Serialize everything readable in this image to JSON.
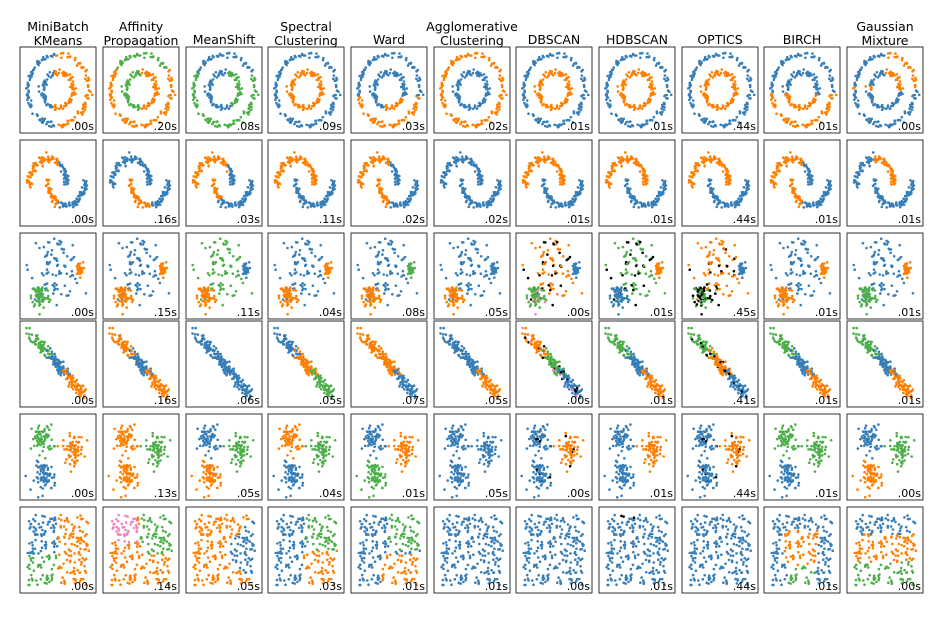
{
  "chart_data": {
    "type": "scatter",
    "layout": "grid",
    "rows": 6,
    "columns": [
      {
        "title": [
          "MiniBatch",
          "KMeans"
        ]
      },
      {
        "title": [
          "Affinity",
          "Propagation"
        ]
      },
      {
        "title": [
          "MeanShift"
        ]
      },
      {
        "title": [
          "Spectral",
          "Clustering"
        ]
      },
      {
        "title": [
          "Ward"
        ]
      },
      {
        "title": [
          "Agglomerative",
          "Clustering"
        ]
      },
      {
        "title": [
          "DBSCAN"
        ]
      },
      {
        "title": [
          "HDBSCAN"
        ]
      },
      {
        "title": [
          "OPTICS"
        ]
      },
      {
        "title": [
          "BIRCH"
        ]
      },
      {
        "title": [
          "Gaussian",
          "Mixture"
        ]
      }
    ],
    "times": [
      [
        ".00s",
        ".20s",
        ".08s",
        ".09s",
        ".03s",
        ".02s",
        ".01s",
        ".01s",
        ".44s",
        ".01s",
        ".00s"
      ],
      [
        ".00s",
        ".16s",
        ".03s",
        ".11s",
        ".02s",
        ".02s",
        ".01s",
        ".01s",
        ".44s",
        ".01s",
        ".01s"
      ],
      [
        ".00s",
        ".15s",
        ".11s",
        ".04s",
        ".08s",
        ".05s",
        ".00s",
        ".01s",
        ".45s",
        ".01s",
        ".01s"
      ],
      [
        ".00s",
        ".16s",
        ".06s",
        ".05s",
        ".07s",
        ".05s",
        ".00s",
        ".01s",
        ".41s",
        ".01s",
        ".01s"
      ],
      [
        ".00s",
        ".13s",
        ".05s",
        ".04s",
        ".01s",
        ".05s",
        ".00s",
        ".01s",
        ".44s",
        ".01s",
        ".00s"
      ],
      [
        ".00s",
        ".14s",
        ".05s",
        ".03s",
        ".01s",
        ".01s",
        ".00s",
        ".01s",
        ".44s",
        ".01s",
        ".00s"
      ]
    ],
    "colors": {
      "blue": "#377eb8",
      "orange": "#ff7f00",
      "green": "#4daf4a",
      "pink": "#f781bf",
      "noise": "#000000"
    },
    "grid": false,
    "axes_ticks": false
  }
}
